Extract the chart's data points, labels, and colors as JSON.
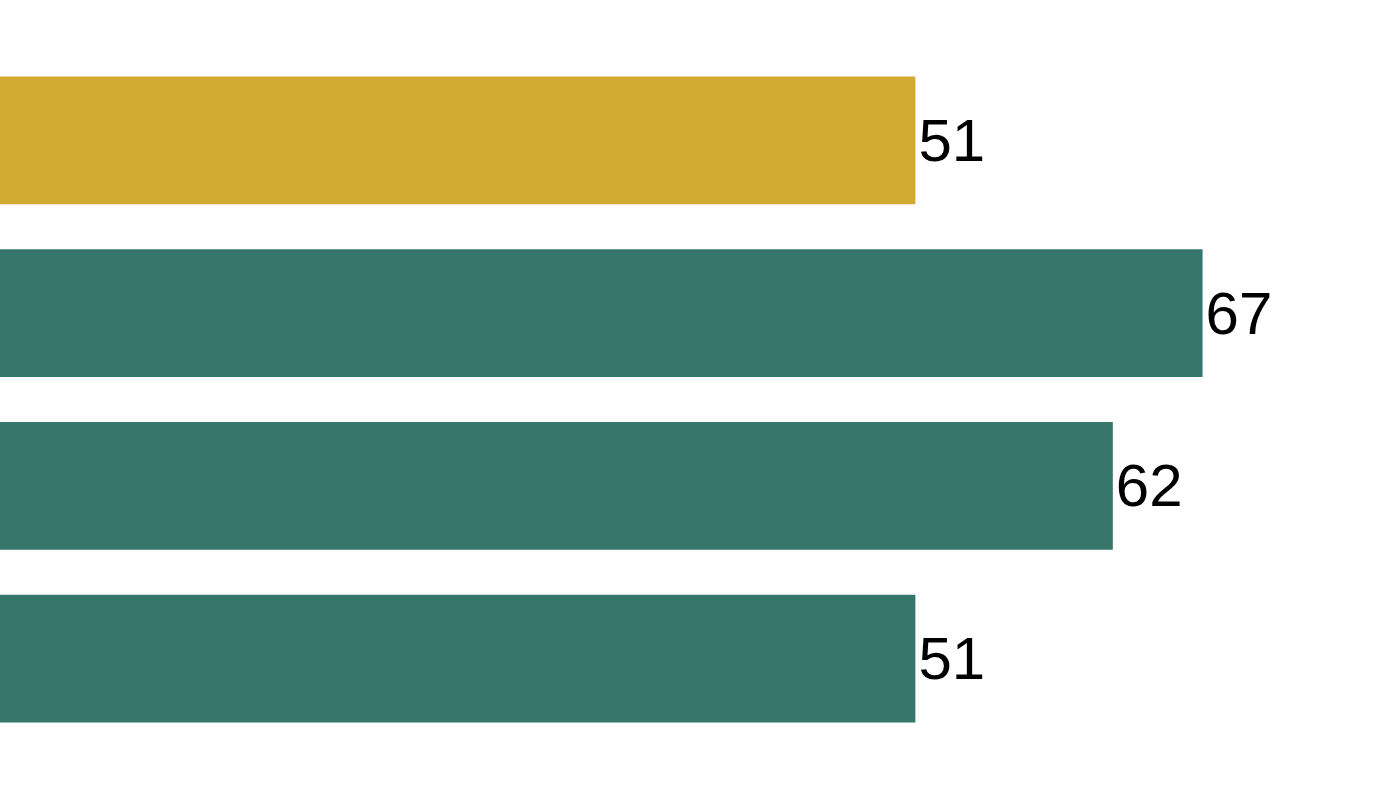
{
  "chart_data": {
    "type": "bar",
    "orientation": "horizontal",
    "categories": [
      null,
      null,
      null,
      null
    ],
    "values": [
      51,
      67,
      62,
      51
    ],
    "colors": [
      "#d2a931",
      "#37766a",
      "#37766a",
      "#37766a"
    ],
    "data_labels": true,
    "xlim": [
      0,
      78
    ],
    "tick_labels": false
  }
}
